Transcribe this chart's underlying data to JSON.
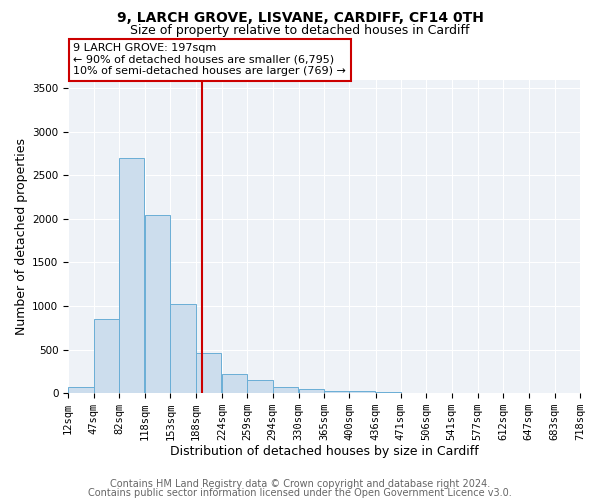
{
  "title_line1": "9, LARCH GROVE, LISVANE, CARDIFF, CF14 0TH",
  "title_line2": "Size of property relative to detached houses in Cardiff",
  "xlabel": "Distribution of detached houses by size in Cardiff",
  "ylabel": "Number of detached properties",
  "bin_left_edges": [
    12,
    47,
    82,
    118,
    153,
    188,
    224,
    259,
    294,
    330,
    365,
    400,
    436,
    471,
    506,
    541,
    577,
    612,
    647,
    683
  ],
  "bin_width": 35,
  "bar_heights": [
    65,
    850,
    2700,
    2050,
    1020,
    460,
    220,
    155,
    70,
    45,
    25,
    20,
    15,
    5,
    3,
    3,
    2,
    2,
    1,
    1
  ],
  "bar_color": "#ccdded",
  "bar_edge_color": "#6aaed6",
  "property_size": 197,
  "vline_color": "#cc0000",
  "annotation_text": "9 LARCH GROVE: 197sqm\n← 90% of detached houses are smaller (6,795)\n10% of semi-detached houses are larger (769) →",
  "annotation_box_edge_color": "#cc0000",
  "annotation_text_color": "#000000",
  "ylim": [
    0,
    3600
  ],
  "yticks": [
    0,
    500,
    1000,
    1500,
    2000,
    2500,
    3000,
    3500
  ],
  "xtick_labels": [
    "12sqm",
    "47sqm",
    "82sqm",
    "118sqm",
    "153sqm",
    "188sqm",
    "224sqm",
    "259sqm",
    "294sqm",
    "330sqm",
    "365sqm",
    "400sqm",
    "436sqm",
    "471sqm",
    "506sqm",
    "541sqm",
    "577sqm",
    "612sqm",
    "647sqm",
    "683sqm",
    "718sqm"
  ],
  "xtick_positions": [
    12,
    47,
    82,
    118,
    153,
    188,
    224,
    259,
    294,
    330,
    365,
    400,
    436,
    471,
    506,
    541,
    577,
    612,
    647,
    683,
    718
  ],
  "footer_line1": "Contains HM Land Registry data © Crown copyright and database right 2024.",
  "footer_line2": "Contains public sector information licensed under the Open Government Licence v3.0.",
  "background_color": "#ffffff",
  "plot_background": "#eef2f7",
  "grid_color": "#ffffff",
  "title_fontsize": 10,
  "subtitle_fontsize": 9,
  "axis_label_fontsize": 9,
  "tick_fontsize": 7.5,
  "footer_fontsize": 7,
  "xlim_left": 12,
  "xlim_right": 718
}
